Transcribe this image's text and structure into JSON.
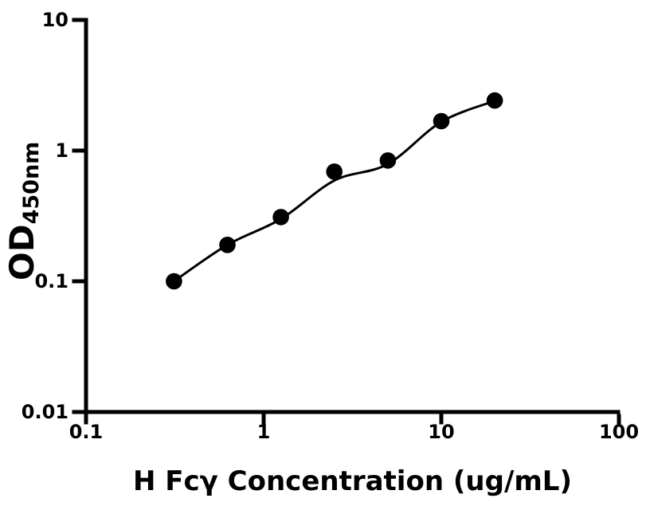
{
  "chart_data": {
    "type": "scatter",
    "title": "",
    "xlabel": "H Fcγ Concentration (ug/mL)",
    "ylabel_main": "OD",
    "ylabel_sub": "450nm",
    "x_scale": "log",
    "y_scale": "log",
    "xlim": [
      0.1,
      100
    ],
    "ylim": [
      0.01,
      10
    ],
    "grid": false,
    "legend": null,
    "x_ticks": [
      {
        "value": 0.1,
        "label": "0.1"
      },
      {
        "value": 1,
        "label": "1"
      },
      {
        "value": 10,
        "label": "10"
      },
      {
        "value": 100,
        "label": "100"
      }
    ],
    "y_ticks": [
      {
        "value": 0.01,
        "label": "0.01"
      },
      {
        "value": 0.1,
        "label": "0.1"
      },
      {
        "value": 1,
        "label": "1"
      },
      {
        "value": 10,
        "label": "10"
      }
    ],
    "series": [
      {
        "name": "standard-curve-points",
        "marker": "circle",
        "color": "#000000",
        "x": [
          0.3125,
          0.625,
          1.25,
          2.5,
          5,
          10,
          20
        ],
        "y": [
          0.1,
          0.19,
          0.31,
          0.69,
          0.84,
          1.68,
          2.42
        ]
      }
    ],
    "fit_curve": {
      "name": "fitted-curve",
      "color": "#000000",
      "x": [
        0.3125,
        0.625,
        1.25,
        2.5,
        5,
        10,
        20
      ],
      "y": [
        0.1,
        0.19,
        0.3,
        0.59,
        0.79,
        1.66,
        2.4
      ]
    }
  },
  "colors": {
    "foreground": "#000000",
    "background": "#ffffff"
  }
}
